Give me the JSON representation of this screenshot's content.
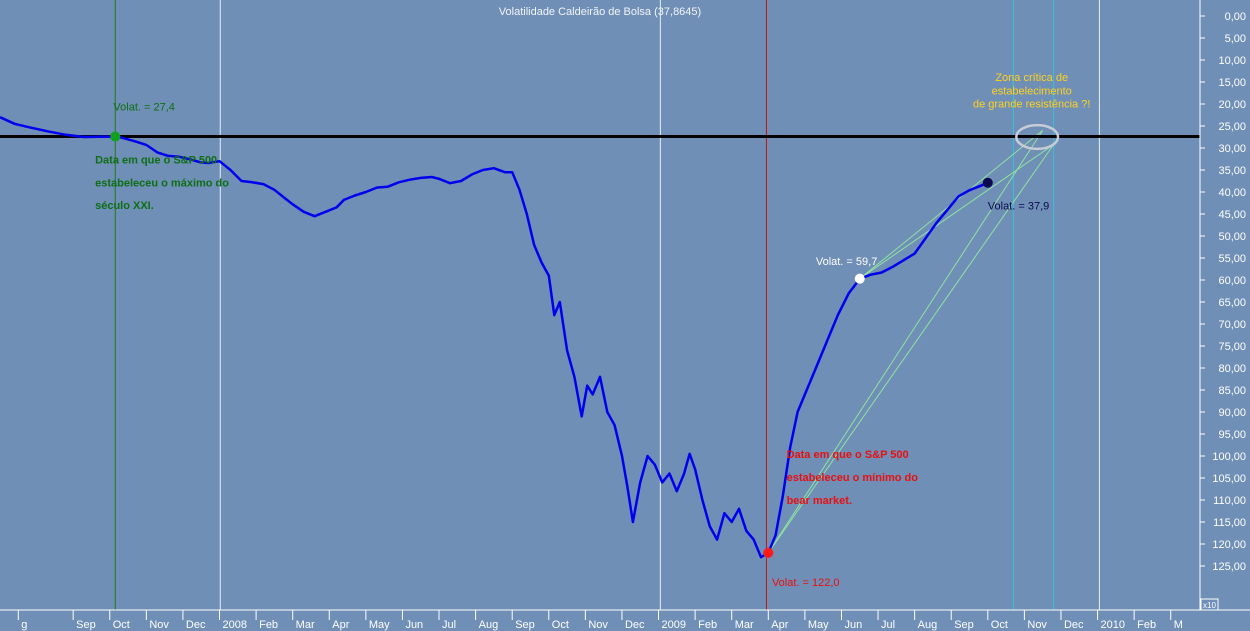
{
  "chart_data": {
    "type": "line",
    "title": "Volatilidade Caldeirão de Bolsa (37,8645)",
    "y_axis_inverted": true,
    "ylim": [
      0,
      128
    ],
    "y_ticks": [
      "0,00",
      "5,00",
      "10,00",
      "15,00",
      "20,00",
      "25,00",
      "30,00",
      "35,00",
      "40,00",
      "45,00",
      "50,00",
      "55,00",
      "60,00",
      "65,00",
      "70,00",
      "75,00",
      "80,00",
      "85,00",
      "90,00",
      "95,00",
      "100,00",
      "105,00",
      "110,00",
      "115,00",
      "120,00",
      "125,00"
    ],
    "y_tick_values": [
      0,
      5,
      10,
      15,
      20,
      25,
      30,
      35,
      40,
      45,
      50,
      55,
      60,
      65,
      70,
      75,
      80,
      85,
      90,
      95,
      100,
      105,
      110,
      115,
      120,
      125
    ],
    "x_tick_labels": [
      "g",
      "Sep",
      "Oct",
      "Nov",
      "Dec",
      "2008",
      "Feb",
      "Mar",
      "Apr",
      "May",
      "Jun",
      "Jul",
      "Aug",
      "Sep",
      "Oct",
      "Nov",
      "Dec",
      "2009",
      "Feb",
      "Mar",
      "Apr",
      "May",
      "Jun",
      "Jul",
      "Aug",
      "Sep",
      "Oct",
      "Nov",
      "Dec",
      "2010",
      "Feb",
      "M"
    ],
    "x_tick_positions": [
      -0.5,
      1,
      2,
      3,
      4,
      5,
      6,
      7,
      8,
      9,
      10,
      11,
      12,
      13,
      14,
      15,
      16,
      17,
      18,
      19,
      20,
      21,
      22,
      23,
      24,
      25,
      26,
      27,
      28,
      29,
      30,
      31
    ],
    "xlim": [
      -1.0,
      31.8
    ],
    "scale_label": "x10",
    "series": [
      {
        "color": "#0000ee",
        "points": [
          [
            -1.0,
            23.0
          ],
          [
            -0.6,
            24.5
          ],
          [
            -0.2,
            25.3
          ],
          [
            0.3,
            26.2
          ],
          [
            0.8,
            27.0
          ],
          [
            1.3,
            27.5
          ],
          [
            1.9,
            27.4
          ],
          [
            2.3,
            27.6
          ],
          [
            2.7,
            28.5
          ],
          [
            3.0,
            29.3
          ],
          [
            3.3,
            31.0
          ],
          [
            3.6,
            31.8
          ],
          [
            3.9,
            32.0
          ],
          [
            4.2,
            32.6
          ],
          [
            4.5,
            33.3
          ],
          [
            4.7,
            33.4
          ],
          [
            5.0,
            33.0
          ],
          [
            5.3,
            35.0
          ],
          [
            5.6,
            37.5
          ],
          [
            5.9,
            37.8
          ],
          [
            6.2,
            38.2
          ],
          [
            6.5,
            39.5
          ],
          [
            6.8,
            41.5
          ],
          [
            7.0,
            42.8
          ],
          [
            7.3,
            44.5
          ],
          [
            7.6,
            45.5
          ],
          [
            7.9,
            44.5
          ],
          [
            8.2,
            43.5
          ],
          [
            8.4,
            41.8
          ],
          [
            8.7,
            40.8
          ],
          [
            9.0,
            40.0
          ],
          [
            9.3,
            39.0
          ],
          [
            9.6,
            38.8
          ],
          [
            9.9,
            37.8
          ],
          [
            10.2,
            37.2
          ],
          [
            10.5,
            36.8
          ],
          [
            10.8,
            36.6
          ],
          [
            11.0,
            37.0
          ],
          [
            11.3,
            38.0
          ],
          [
            11.6,
            37.5
          ],
          [
            11.9,
            36.0
          ],
          [
            12.2,
            35.0
          ],
          [
            12.5,
            34.6
          ],
          [
            12.8,
            35.5
          ],
          [
            13.0,
            35.5
          ],
          [
            13.2,
            39.5
          ],
          [
            13.4,
            45.0
          ],
          [
            13.6,
            52.0
          ],
          [
            13.8,
            56.0
          ],
          [
            14.0,
            59.0
          ],
          [
            14.15,
            68.0
          ],
          [
            14.3,
            65.0
          ],
          [
            14.5,
            76.0
          ],
          [
            14.7,
            82.0
          ],
          [
            14.9,
            91.0
          ],
          [
            15.05,
            84.0
          ],
          [
            15.2,
            86.0
          ],
          [
            15.4,
            82.0
          ],
          [
            15.6,
            90.0
          ],
          [
            15.8,
            93.0
          ],
          [
            16.0,
            100.0
          ],
          [
            16.15,
            107.0
          ],
          [
            16.3,
            115.0
          ],
          [
            16.5,
            106.0
          ],
          [
            16.7,
            100.0
          ],
          [
            16.9,
            102.0
          ],
          [
            17.1,
            106.0
          ],
          [
            17.3,
            104.0
          ],
          [
            17.5,
            108.0
          ],
          [
            17.7,
            104.0
          ],
          [
            17.85,
            99.5
          ],
          [
            18.0,
            103.0
          ],
          [
            18.2,
            110.0
          ],
          [
            18.4,
            116.0
          ],
          [
            18.6,
            119.0
          ],
          [
            18.8,
            113.0
          ],
          [
            19.0,
            115.0
          ],
          [
            19.2,
            112.0
          ],
          [
            19.4,
            117.0
          ],
          [
            19.6,
            119.0
          ],
          [
            19.8,
            123.0
          ],
          [
            20.0,
            122.0
          ],
          [
            20.2,
            118.0
          ],
          [
            20.4,
            109.0
          ],
          [
            20.6,
            98.0
          ],
          [
            20.8,
            90.0
          ],
          [
            21.0,
            86.0
          ],
          [
            21.3,
            80.0
          ],
          [
            21.6,
            74.0
          ],
          [
            21.9,
            68.0
          ],
          [
            22.2,
            63.0
          ],
          [
            22.5,
            59.7
          ],
          [
            22.8,
            58.8
          ],
          [
            23.1,
            58.3
          ],
          [
            23.4,
            57.0
          ],
          [
            23.7,
            55.5
          ],
          [
            24.0,
            54.0
          ],
          [
            24.3,
            50.5
          ],
          [
            24.6,
            47.0
          ],
          [
            24.9,
            44.0
          ],
          [
            25.2,
            41.0
          ],
          [
            25.5,
            39.6
          ],
          [
            25.8,
            38.6
          ],
          [
            26.0,
            37.9
          ]
        ]
      }
    ],
    "reference_line": {
      "y": 27.4,
      "color": "#000000"
    },
    "vertical_lines": [
      {
        "x": 2.15,
        "color": "#1e7a1e"
      },
      {
        "x": 5.02,
        "color": "#e8eef6"
      },
      {
        "x": 17.05,
        "color": "#e8eef6"
      },
      {
        "x": 19.95,
        "color": "#cc1010"
      },
      {
        "x": 26.7,
        "color": "#33c3dd"
      },
      {
        "x": 27.8,
        "color": "#33c3dd"
      },
      {
        "x": 29.05,
        "color": "#e8eef6"
      }
    ],
    "points": [
      {
        "x": 2.15,
        "y": 27.4,
        "color": "#10a020"
      },
      {
        "x": 20.0,
        "y": 122.0,
        "color": "#ff1a1a"
      },
      {
        "x": 22.5,
        "y": 59.7,
        "color": "#ffffff"
      },
      {
        "x": 26.0,
        "y": 37.9,
        "color": "#0a0a50"
      }
    ],
    "trend_lines": [
      [
        [
          22.5,
          59.7
        ],
        [
          27.5,
          26.0
        ]
      ],
      [
        [
          22.5,
          59.7
        ],
        [
          27.8,
          29.2
        ]
      ],
      [
        [
          20.0,
          122.0
        ],
        [
          27.5,
          26.0
        ]
      ],
      [
        [
          20.0,
          122.0
        ],
        [
          27.8,
          29.2
        ]
      ]
    ],
    "ellipse": {
      "cx": 27.35,
      "cy": 27.5,
      "rx": 0.57,
      "ry": 2.7
    },
    "annotations": [
      {
        "text": "Volat. = 27,4",
        "x": 2.1,
        "y": 21.5,
        "color": "#0d6e14",
        "bold": false
      },
      {
        "text": "Data em que o S&P 500",
        "x": 1.6,
        "y": 33.5,
        "color": "#0d6e14",
        "bold": true
      },
      {
        "text": "estabeleceu o máximo do",
        "x": 1.6,
        "y": 38.7,
        "color": "#0d6e14",
        "bold": true
      },
      {
        "text": "século XXI.",
        "x": 1.6,
        "y": 43.9,
        "color": "#0d6e14",
        "bold": true
      },
      {
        "text": "Data em que o S&P 500",
        "x": 20.5,
        "y": 100.5,
        "color": "#e81010",
        "bold": true
      },
      {
        "text": "estabeleceu o mínimo do",
        "x": 20.5,
        "y": 105.7,
        "color": "#e81010",
        "bold": true
      },
      {
        "text": "bear market.",
        "x": 20.5,
        "y": 110.9,
        "color": "#e81010",
        "bold": true
      },
      {
        "text": "Volat. = 122,0",
        "x": 20.1,
        "y": 129.5,
        "color": "#e81010",
        "bold": false
      },
      {
        "text": "Volat. = 59,7",
        "x": 21.3,
        "y": 56.6,
        "color": "#ffffff",
        "bold": false
      },
      {
        "text": "Volat. = 37,9",
        "x": 26.0,
        "y": 44.0,
        "color": "#0a0a50",
        "bold": false
      },
      {
        "text": "Zona crítica de",
        "x": 27.2,
        "y": 14.8,
        "color": "#ffd21e",
        "bold": false
      },
      {
        "text": "estabelecimento",
        "x": 27.2,
        "y": 17.8,
        "color": "#ffd21e",
        "bold": false
      },
      {
        "text": "de grande resistência ?!",
        "x": 27.2,
        "y": 20.8,
        "color": "#ffd21e",
        "bold": false
      }
    ]
  }
}
